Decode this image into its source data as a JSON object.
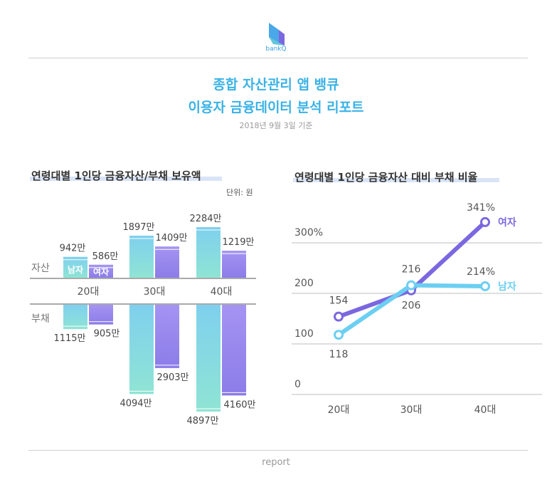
{
  "brand": "bankQ",
  "title_line1": "종합 자산관리 앱 뱅큐",
  "title_line2": "이용자 금융데이터 분석 리포트",
  "subtitle": "2018년 9월 3일 기준",
  "footer": "report",
  "colors": {
    "male_asset_top": "#7fd0ee",
    "male_asset_bottom": "#8de3d5",
    "female_top": "#9b8ef0",
    "female_bottom": "#8a7be8",
    "line_female": "#7b68e0",
    "line_male": "#6ccff2",
    "title": "#3ab2e6"
  },
  "chart_data": [
    {
      "type": "bar",
      "title": "연령대별 1인당 금융자산/부채 보유액",
      "unit_label": "단위: 원",
      "categories": [
        "20대",
        "30대",
        "40대"
      ],
      "row_labels": {
        "assets": "자산",
        "debt": "부채"
      },
      "legend_inline": {
        "male": "남자",
        "female": "여자"
      },
      "assets": [
        {
          "name": "남자",
          "values": [
            942,
            1897,
            2284
          ],
          "labels": [
            "942만",
            "1897만",
            "2284만"
          ]
        },
        {
          "name": "여자",
          "values": [
            586,
            1409,
            1219
          ],
          "labels": [
            "586만",
            "1409만",
            "1219만"
          ]
        }
      ],
      "debt": [
        {
          "name": "남자",
          "values": [
            1115,
            4094,
            4897
          ],
          "labels": [
            "1115만",
            "4094만",
            "4897만"
          ]
        },
        {
          "name": "여자",
          "values": [
            905,
            2903,
            4160
          ],
          "labels": [
            "905만",
            "2903만",
            "4160만"
          ]
        }
      ]
    },
    {
      "type": "line",
      "title": "연령대별 1인당 금융자산 대비 부채 비율",
      "categories": [
        "20대",
        "30대",
        "40대"
      ],
      "y_ticks": [
        "0",
        "100",
        "200",
        "300%"
      ],
      "y_tick_values": [
        0,
        100,
        200,
        300
      ],
      "ylim": [
        0,
        300
      ],
      "grid": true,
      "series": [
        {
          "name": "여자",
          "values": [
            154,
            206,
            341
          ],
          "labels": [
            "154",
            "206",
            "341%"
          ]
        },
        {
          "name": "남자",
          "values": [
            118,
            216,
            214
          ],
          "labels": [
            "118",
            "216",
            "214%"
          ]
        }
      ]
    }
  ]
}
